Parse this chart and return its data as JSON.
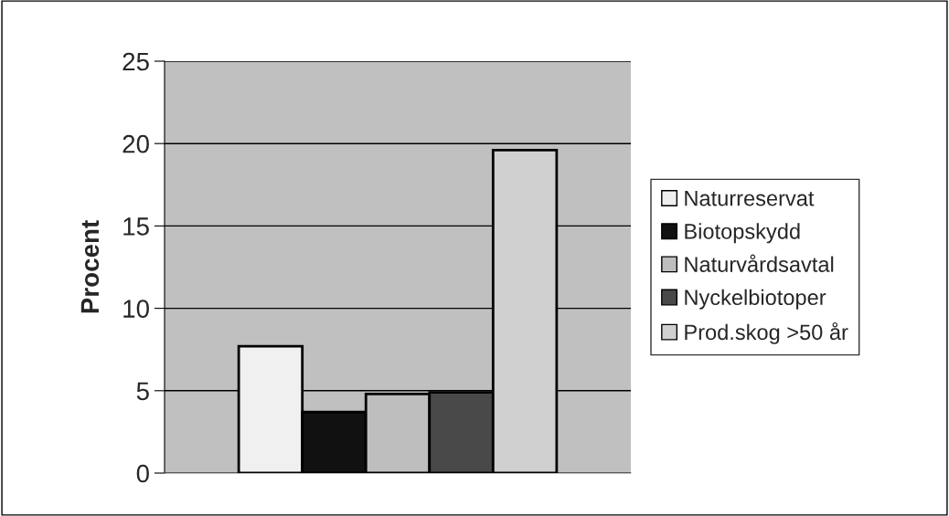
{
  "chart_data": {
    "type": "bar",
    "ylabel": "Procent",
    "categories": [
      null
    ],
    "series": [
      {
        "name": "Naturreservat",
        "color": "#f0f0f0",
        "values": [
          7.7
        ]
      },
      {
        "name": "Biotopskydd",
        "color": "#111111",
        "values": [
          3.7
        ]
      },
      {
        "name": "Naturvårdsavtal",
        "color": "#bebebe",
        "values": [
          4.8
        ]
      },
      {
        "name": "Nyckelbiotoper",
        "color": "#494949",
        "values": [
          4.9
        ]
      },
      {
        "name": "Prod.skog >50 år",
        "color": "#d0d0d0",
        "values": [
          19.6
        ]
      }
    ],
    "ylim": [
      0,
      25
    ],
    "yticks": [
      0,
      5,
      10,
      15,
      20,
      25
    ],
    "grid": "y",
    "legend": "right"
  }
}
